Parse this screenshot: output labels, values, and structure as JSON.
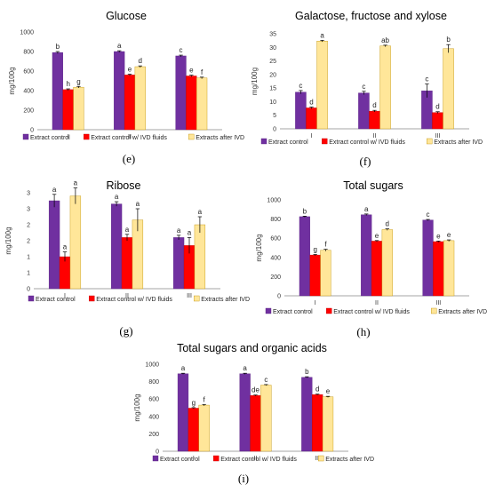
{
  "colors": {
    "series": [
      "#7030A0",
      "#FF0000",
      "#FFE699"
    ],
    "series_stroke": [
      "#5B2585",
      "#C00000",
      "#BF9000"
    ],
    "axis": "#888888",
    "error_bar": "#000000"
  },
  "chart_data": [
    {
      "id": "glucose",
      "type": "bar",
      "panel": "(e)",
      "title": "Glucose",
      "xlabel": "",
      "ylabel": "mg/100g",
      "ylim": [
        0,
        1000
      ],
      "yticks": [
        "0",
        "200",
        "400",
        "600",
        "800",
        "1000"
      ],
      "categories": [
        "I",
        "II",
        "III"
      ],
      "series": [
        {
          "name": "Extract control",
          "values": [
            790,
            800,
            755
          ],
          "errors": [
            10,
            8,
            8
          ],
          "labels": [
            "b",
            "a",
            "c"
          ]
        },
        {
          "name": "Extract control w/ IVD fluids",
          "values": [
            410,
            560,
            550
          ],
          "errors": [
            8,
            8,
            8
          ],
          "labels": [
            "h",
            "e",
            "e"
          ]
        },
        {
          "name": "Extracts after IVD",
          "values": [
            435,
            645,
            530
          ],
          "errors": [
            8,
            8,
            8
          ],
          "labels": [
            "g",
            "d",
            "f"
          ]
        }
      ],
      "legend": "bottom",
      "grid": false
    },
    {
      "id": "galactose",
      "type": "bar",
      "panel": "(f)",
      "title": "Galactose, fructose and xylose",
      "xlabel": "",
      "ylabel": "mg/100g",
      "ylim": [
        0,
        35
      ],
      "yticks": [
        "0",
        "5",
        "10",
        "15",
        "20",
        "25",
        "30",
        "35"
      ],
      "categories": [
        "I",
        "II",
        "III"
      ],
      "series": [
        {
          "name": "Extract control",
          "values": [
            13.5,
            13.2,
            14.0
          ],
          "errors": [
            0.6,
            0.6,
            2.5
          ],
          "labels": [
            "c",
            "c",
            "c"
          ]
        },
        {
          "name": "Extract control w/ IVD fluids",
          "values": [
            7.7,
            6.5,
            6.0
          ],
          "errors": [
            0.3,
            0.3,
            0.3
          ],
          "labels": [
            "d",
            "d",
            "d"
          ]
        },
        {
          "name": "Extracts after IVD",
          "values": [
            32.3,
            30.5,
            29.5
          ],
          "errors": [
            0.3,
            0.3,
            1.5
          ],
          "labels": [
            "a",
            "ab",
            "b"
          ]
        }
      ],
      "legend": "bottom",
      "grid": false
    },
    {
      "id": "ribose",
      "type": "bar",
      "panel": "(g)",
      "title": "Ribose",
      "xlabel": "",
      "ylabel": "mg/100g",
      "ylim": [
        0,
        3
      ],
      "yticks": [
        "0",
        "1",
        "1",
        "2",
        "2",
        "3",
        "3"
      ],
      "ytick_values": [
        0,
        0.5,
        1.0,
        1.5,
        2.0,
        2.5,
        3.0
      ],
      "categories": [
        "I",
        "II",
        "III"
      ],
      "series": [
        {
          "name": "Extract control",
          "values": [
            2.75,
            2.65,
            1.6
          ],
          "errors": [
            0.2,
            0.07,
            0.07
          ],
          "labels": [
            "a",
            "a",
            "a"
          ]
        },
        {
          "name": "Extract control w/ IVD fluids",
          "values": [
            1.0,
            1.6,
            1.35
          ],
          "errors": [
            0.15,
            0.1,
            0.25
          ],
          "labels": [
            "a",
            "a",
            "a"
          ]
        },
        {
          "name": "Extracts after IVD",
          "values": [
            2.9,
            2.15,
            2.0
          ],
          "errors": [
            0.25,
            0.35,
            0.25
          ],
          "labels": [
            "a",
            "a",
            "a"
          ]
        }
      ],
      "legend": "bottom",
      "grid": false
    },
    {
      "id": "total_sugars",
      "type": "bar",
      "panel": "(h)",
      "title": "Total sugars",
      "xlabel": "",
      "ylabel": "mg/100g",
      "ylim": [
        0,
        1000
      ],
      "yticks": [
        "0",
        "200",
        "400",
        "600",
        "800",
        "1000"
      ],
      "categories": [
        "I",
        "II",
        "III"
      ],
      "series": [
        {
          "name": "Extract control",
          "values": [
            825,
            845,
            790
          ],
          "errors": [
            5,
            8,
            6
          ],
          "labels": [
            "b",
            "a",
            "c"
          ]
        },
        {
          "name": "Extract control w/ IVD fluids",
          "values": [
            425,
            570,
            565
          ],
          "errors": [
            6,
            6,
            6
          ],
          "labels": [
            "g",
            "e",
            "e"
          ]
        },
        {
          "name": "Extracts after IVD",
          "values": [
            475,
            690,
            575
          ],
          "errors": [
            10,
            8,
            8
          ],
          "labels": [
            "f",
            "d",
            "e"
          ]
        }
      ],
      "legend": "bottom",
      "grid": false
    },
    {
      "id": "total_sugars_acids",
      "type": "bar",
      "panel": "(i)",
      "title": "Total sugars and organic acids",
      "xlabel": "",
      "ylabel": "mg/100g",
      "ylim": [
        0,
        1000
      ],
      "yticks": [
        "0",
        "200",
        "400",
        "600",
        "800",
        "1000"
      ],
      "categories": [
        "I",
        "II",
        "III"
      ],
      "series": [
        {
          "name": "Extract control",
          "values": [
            890,
            890,
            850
          ],
          "errors": [
            6,
            6,
            6
          ],
          "labels": [
            "a",
            "a",
            "b"
          ]
        },
        {
          "name": "Extract control w/ IVD fluids",
          "values": [
            495,
            640,
            650
          ],
          "errors": [
            6,
            6,
            6
          ],
          "labels": [
            "g",
            "de",
            "d"
          ]
        },
        {
          "name": "Extracts after IVD",
          "values": [
            530,
            760,
            625
          ],
          "errors": [
            8,
            6,
            6
          ],
          "labels": [
            "f",
            "c",
            "e"
          ]
        }
      ],
      "legend": "bottom",
      "grid": false
    }
  ]
}
